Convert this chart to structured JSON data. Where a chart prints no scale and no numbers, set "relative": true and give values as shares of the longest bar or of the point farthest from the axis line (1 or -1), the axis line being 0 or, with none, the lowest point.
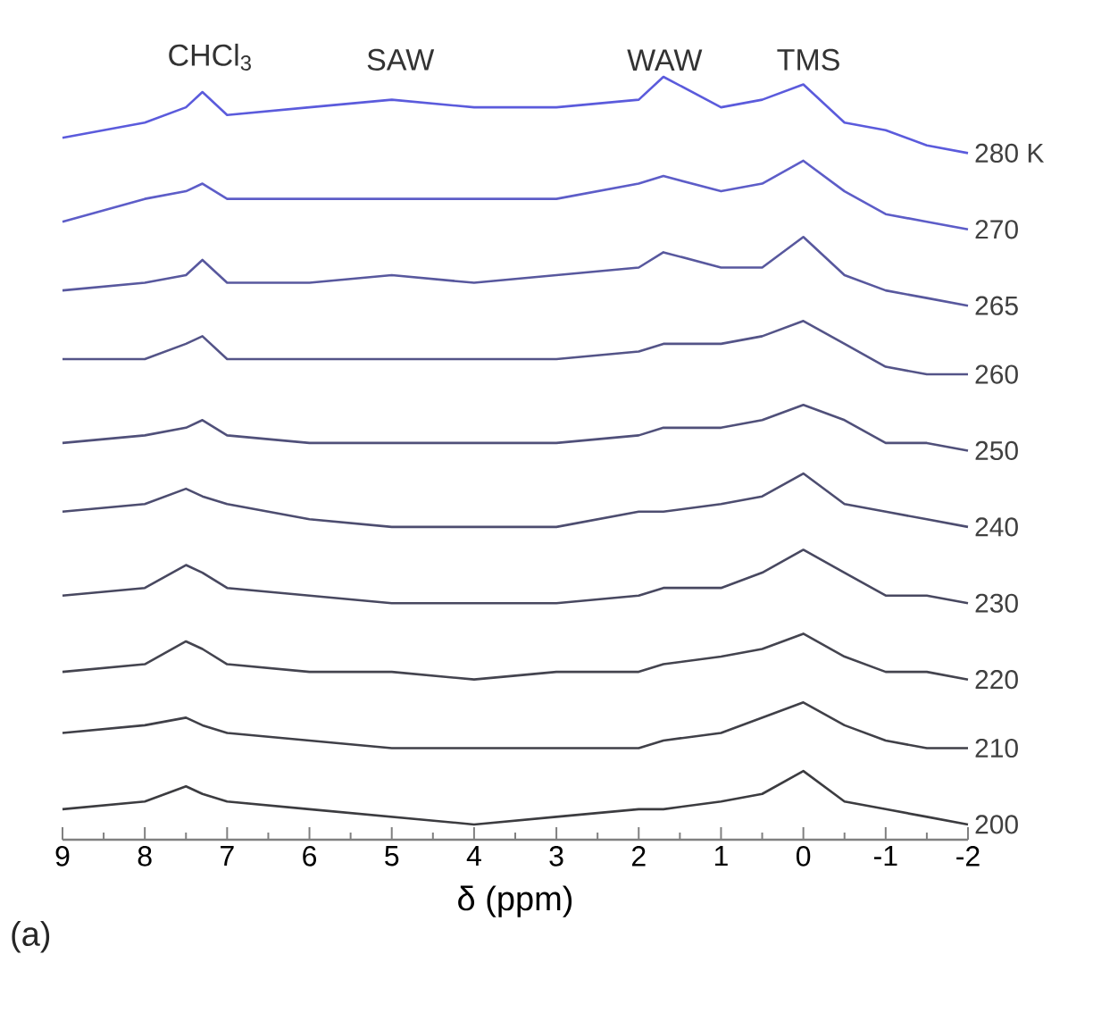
{
  "chart_data": {
    "type": "line",
    "relative": true,
    "xlabel": "δ (ppm)",
    "x": [
      9,
      8,
      7.5,
      7.3,
      7,
      6,
      5,
      4,
      3,
      2,
      1.7,
      1,
      0.5,
      0,
      -0.5,
      -1,
      -1.5,
      -2
    ],
    "xlim": [
      9,
      -2
    ],
    "xticks": [
      9,
      8,
      7,
      6,
      5,
      4,
      3,
      2,
      1,
      0,
      -1,
      -2
    ],
    "annotations": [
      "CHCl$_{3}$",
      "SAW",
      "WAW",
      "TMS",
      "(a)"
    ],
    "series": [
      {
        "name": "280 K",
        "color": "#5b5bdc",
        "values": [
          0.92,
          0.94,
          0.96,
          0.98,
          0.95,
          0.96,
          0.97,
          0.96,
          0.96,
          0.97,
          1,
          0.96,
          0.97,
          0.99,
          0.94,
          0.93,
          0.91,
          0.9
        ]
      },
      {
        "name": "270",
        "color": "#5d5dc8",
        "values": [
          0.81,
          0.84,
          0.85,
          0.86,
          0.84,
          0.84,
          0.84,
          0.84,
          0.84,
          0.86,
          0.87,
          0.85,
          0.86,
          0.89,
          0.85,
          0.82,
          0.81,
          0.8
        ]
      },
      {
        "name": "265",
        "color": "#58589e",
        "values": [
          0.72,
          0.73,
          0.74,
          0.76,
          0.73,
          0.73,
          0.74,
          0.73,
          0.74,
          0.75,
          0.77,
          0.75,
          0.75,
          0.79,
          0.74,
          0.72,
          0.71,
          0.7
        ]
      },
      {
        "name": "260",
        "color": "#545488",
        "values": [
          0.63,
          0.63,
          0.65,
          0.66,
          0.63,
          0.63,
          0.63,
          0.63,
          0.63,
          0.64,
          0.65,
          0.65,
          0.66,
          0.68,
          0.65,
          0.62,
          0.61,
          0.61
        ]
      },
      {
        "name": "250",
        "color": "#50507a",
        "values": [
          0.52,
          0.53,
          0.54,
          0.55,
          0.53,
          0.52,
          0.52,
          0.52,
          0.52,
          0.53,
          0.54,
          0.54,
          0.55,
          0.57,
          0.55,
          0.52,
          0.52,
          0.51
        ]
      },
      {
        "name": "240",
        "color": "#4d4d70",
        "values": [
          0.43,
          0.44,
          0.46,
          0.45,
          0.44,
          0.42,
          0.41,
          0.41,
          0.41,
          0.43,
          0.43,
          0.44,
          0.45,
          0.48,
          0.44,
          0.43,
          0.42,
          0.41
        ]
      },
      {
        "name": "230",
        "color": "#484860",
        "values": [
          0.32,
          0.33,
          0.36,
          0.35,
          0.33,
          0.32,
          0.31,
          0.31,
          0.31,
          0.32,
          0.33,
          0.33,
          0.35,
          0.38,
          0.35,
          0.32,
          0.32,
          0.31
        ]
      },
      {
        "name": "220",
        "color": "#44444f",
        "values": [
          0.22,
          0.23,
          0.26,
          0.25,
          0.23,
          0.22,
          0.22,
          0.21,
          0.22,
          0.22,
          0.23,
          0.24,
          0.25,
          0.27,
          0.24,
          0.22,
          0.22,
          0.21
        ]
      },
      {
        "name": "210",
        "color": "#404048",
        "values": [
          0.14,
          0.15,
          0.16,
          0.15,
          0.14,
          0.13,
          0.12,
          0.12,
          0.12,
          0.12,
          0.13,
          0.14,
          0.16,
          0.18,
          0.15,
          0.13,
          0.12,
          0.12
        ]
      },
      {
        "name": "200",
        "color": "#3c3c40",
        "values": [
          0.04,
          0.05,
          0.07,
          0.06,
          0.05,
          0.04,
          0.03,
          0.02,
          0.03,
          0.04,
          0.04,
          0.05,
          0.06,
          0.09,
          0.05,
          0.04,
          0.03,
          0.02
        ]
      }
    ]
  }
}
